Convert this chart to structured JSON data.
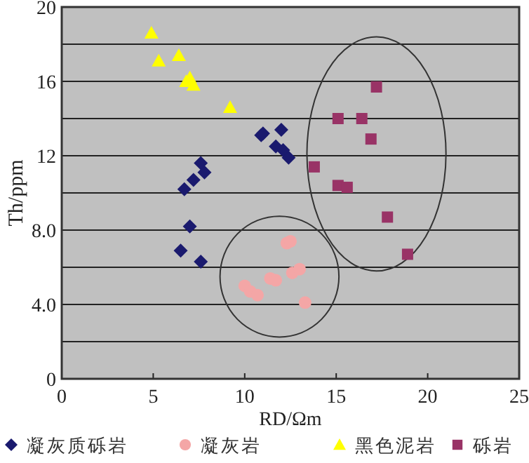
{
  "chart_data": {
    "type": "scatter",
    "xlabel": "RD/Ωm",
    "ylabel": "Th/ppm",
    "xlim": [
      0,
      25
    ],
    "xticks": [
      0,
      5,
      10,
      15,
      20,
      25
    ],
    "ylim": [
      0,
      20
    ],
    "yticks": [
      0,
      {
        "value": 2,
        "label": null
      },
      {
        "value": 4,
        "label": "4.0"
      },
      {
        "value": 6,
        "label": null
      },
      {
        "value": 8,
        "label": "8.0"
      },
      {
        "value": 10,
        "label": null
      },
      12,
      {
        "value": 14,
        "label": null
      },
      16,
      {
        "value": 18,
        "label": null
      },
      20
    ],
    "grid": "y",
    "legend": "bottom",
    "series": [
      {
        "name": "凝灰质砾岩",
        "color": "#1a1a6e",
        "marker": "diamond",
        "x": [
          6.5,
          7.6,
          7.0,
          6.7,
          7.2,
          7.8,
          7.6,
          10.9,
          11.0,
          12.0,
          11.7,
          12.1,
          12.4
        ],
        "values": [
          6.9,
          6.3,
          8.2,
          10.2,
          10.7,
          11.1,
          11.6,
          13.1,
          13.2,
          13.4,
          12.5,
          12.3,
          11.9
        ]
      },
      {
        "name": "凝灰岩",
        "color": "#f4a6a6",
        "marker": "circle",
        "x": [
          10.0,
          10.3,
          10.7,
          11.4,
          11.7,
          12.6,
          13.0,
          13.3,
          12.3,
          12.5
        ],
        "values": [
          5.0,
          4.7,
          4.5,
          5.4,
          5.3,
          5.7,
          5.9,
          4.1,
          7.3,
          7.4
        ]
      },
      {
        "name": "黑色泥岩",
        "color": "#ffff00",
        "marker": "triangle",
        "x": [
          4.9,
          5.3,
          6.4,
          6.8,
          7.0,
          7.2,
          9.2
        ],
        "values": [
          18.6,
          17.1,
          17.4,
          16.0,
          16.2,
          15.8,
          14.6
        ]
      },
      {
        "name": "砾岩",
        "color": "#993366",
        "marker": "square",
        "x": [
          17.2,
          15.1,
          16.4,
          16.9,
          13.8,
          15.1,
          15.6,
          17.8,
          18.9
        ],
        "values": [
          15.7,
          14.0,
          14.0,
          12.9,
          11.4,
          10.4,
          10.3,
          8.7,
          6.7
        ]
      }
    ]
  }
}
